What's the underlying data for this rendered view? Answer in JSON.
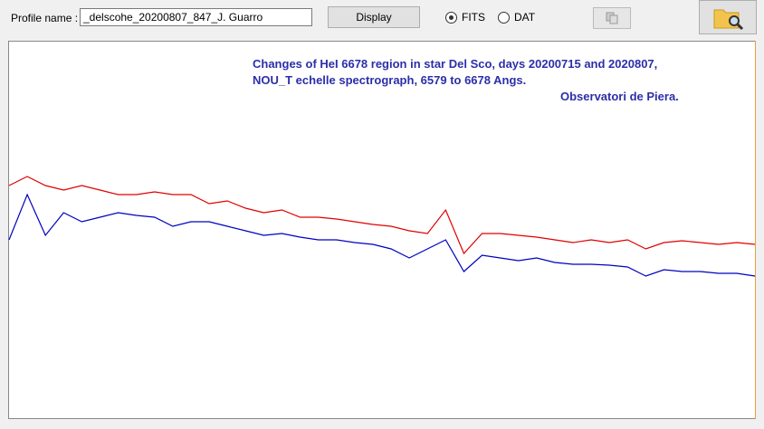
{
  "toolbar": {
    "profile_label": "Profile name :",
    "profile_value": "_delscohe_20200807_847_J. Guarro",
    "display_button": "Display",
    "radio_fits": "FITS",
    "radio_dat": "DAT",
    "selected": "FITS"
  },
  "chart_data": {
    "type": "line",
    "annotations": [
      "Changes of HeI 6678 region in star Del Sco, days 20200715 and 2020807,",
      "NOU_T echelle spectrograph,  6579 to 6678 Angs.",
      "Observatori de Piera."
    ],
    "ylim": [
      0,
      416
    ],
    "series": [
      {
        "color": "#e00000",
        "values": [
          257,
          267,
          257,
          252,
          257,
          252,
          247,
          247,
          250,
          247,
          247,
          237,
          240,
          232,
          227,
          230,
          222,
          222,
          220,
          217,
          214,
          212,
          207,
          204,
          230,
          182,
          204,
          204,
          202,
          200,
          197,
          194,
          197,
          194,
          197,
          187,
          194,
          196,
          194,
          192,
          194,
          192
        ]
      },
      {
        "color": "#0000c0",
        "values": [
          197,
          247,
          202,
          227,
          217,
          222,
          227,
          224,
          222,
          212,
          217,
          217,
          212,
          207,
          202,
          204,
          200,
          197,
          197,
          194,
          192,
          187,
          177,
          187,
          197,
          162,
          180,
          177,
          174,
          177,
          172,
          170,
          170,
          169,
          167,
          157,
          164,
          162,
          162,
          160,
          160,
          157
        ]
      }
    ]
  }
}
